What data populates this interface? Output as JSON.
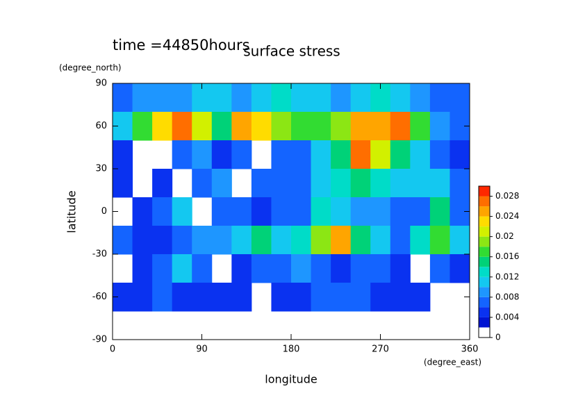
{
  "chart_data": {
    "type": "contour",
    "title": "surface stress",
    "subtitle": "time =44850hours",
    "x_label": "longitude",
    "x_unit": "(degree_east)",
    "y_label": "latitude",
    "y_unit": "(degree_north)",
    "xlim": [
      0,
      360
    ],
    "xticks": [
      0,
      90,
      180,
      270,
      360
    ],
    "ylim": [
      -90,
      90
    ],
    "yticks": [
      -90,
      -60,
      -30,
      0,
      30,
      60,
      90
    ],
    "x": [
      10,
      30,
      50,
      70,
      90,
      110,
      130,
      150,
      170,
      190,
      210,
      230,
      250,
      270,
      290,
      310,
      330,
      350
    ],
    "y": [
      80,
      60,
      40,
      20,
      0,
      -20,
      -40,
      -60,
      -80
    ],
    "z": [
      [
        0.006,
        0.008,
        0.008,
        0.008,
        0.01,
        0.01,
        0.008,
        0.01,
        0.012,
        0.01,
        0.01,
        0.008,
        0.01,
        0.012,
        0.01,
        0.008,
        0.006,
        0.006
      ],
      [
        0.01,
        0.016,
        0.022,
        0.026,
        0.02,
        0.014,
        0.024,
        0.022,
        0.018,
        0.016,
        0.016,
        0.018,
        0.024,
        0.024,
        0.026,
        0.016,
        0.008,
        0.006
      ],
      [
        0.004,
        null,
        null,
        0.006,
        0.008,
        0.004,
        0.006,
        null,
        0.006,
        0.006,
        0.01,
        0.014,
        0.026,
        0.02,
        0.014,
        0.01,
        0.006,
        0.004
      ],
      [
        0.004,
        null,
        0.004,
        null,
        0.006,
        0.008,
        null,
        0.006,
        0.006,
        0.006,
        0.01,
        0.012,
        0.014,
        0.012,
        0.01,
        0.01,
        0.01,
        0.006
      ],
      [
        null,
        0.004,
        0.006,
        0.01,
        null,
        0.006,
        0.006,
        0.004,
        0.006,
        0.006,
        0.012,
        0.01,
        0.008,
        0.008,
        0.006,
        0.006,
        0.014,
        0.006
      ],
      [
        0.006,
        0.004,
        0.004,
        0.006,
        0.008,
        0.008,
        0.01,
        0.014,
        0.01,
        0.012,
        0.018,
        0.024,
        0.014,
        0.01,
        0.006,
        0.012,
        0.016,
        0.01
      ],
      [
        null,
        0.004,
        0.006,
        0.01,
        0.006,
        null,
        0.004,
        0.006,
        0.006,
        0.008,
        0.006,
        0.004,
        0.006,
        0.006,
        0.004,
        null,
        0.006,
        0.004
      ],
      [
        0.004,
        0.004,
        0.006,
        0.004,
        0.004,
        0.004,
        0.004,
        null,
        0.004,
        0.004,
        0.006,
        0.006,
        0.006,
        0.004,
        0.004,
        0.004,
        null,
        null
      ],
      [
        null,
        null,
        null,
        null,
        null,
        null,
        null,
        null,
        null,
        null,
        null,
        null,
        null,
        null,
        null,
        null,
        null,
        null
      ]
    ],
    "levels": [
      0,
      0.002,
      0.004,
      0.006,
      0.008,
      0.01,
      0.012,
      0.014,
      0.016,
      0.018,
      0.02,
      0.022,
      0.024,
      0.026,
      0.028,
      0.03
    ],
    "colors": [
      "#ffffff",
      "#0014d2",
      "#0a32f0",
      "#1464ff",
      "#1e96ff",
      "#14c8f0",
      "#00dcc8",
      "#00d278",
      "#32dc32",
      "#8ce614",
      "#d2f000",
      "#ffdc00",
      "#ffa500",
      "#ff6e00",
      "#ff2800"
    ],
    "colorbar_ticks": [
      0,
      0.004,
      0.008,
      0.012,
      0.016,
      0.02,
      0.024,
      0.028
    ]
  }
}
